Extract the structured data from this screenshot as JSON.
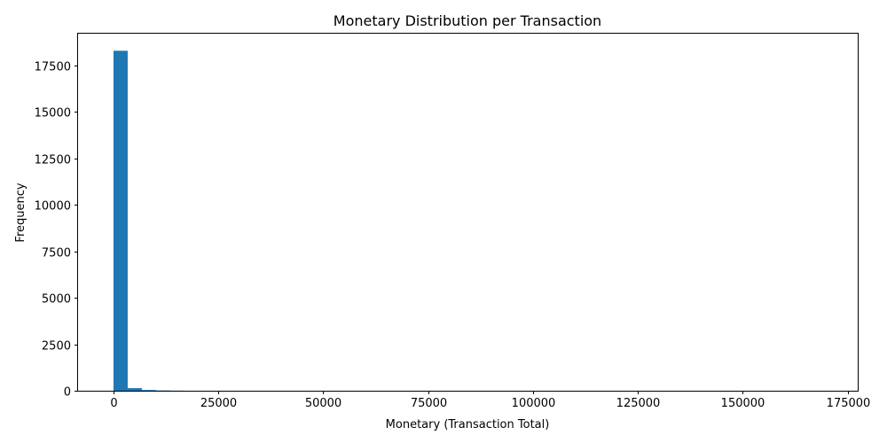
{
  "chart_data": {
    "type": "bar",
    "title": "Monetary Distribution per Transaction",
    "xlabel": "Monetary (Transaction Total)",
    "ylabel": "Frequency",
    "xlim": [
      -8449,
      177401
    ],
    "ylim": [
      0,
      19220
    ],
    "bin_width": 3379,
    "bins": [
      {
        "x0": 0,
        "count": 18300
      },
      {
        "x0": 3379,
        "count": 140
      },
      {
        "x0": 6758,
        "count": 40
      },
      {
        "x0": 10137,
        "count": 15
      },
      {
        "x0": 13516,
        "count": 5
      }
    ],
    "x_ticks": [
      0,
      25000,
      50000,
      75000,
      100000,
      125000,
      150000,
      175000
    ],
    "x_tick_labels": [
      "0",
      "25000",
      "50000",
      "75000",
      "100000",
      "125000",
      "150000",
      "175000"
    ],
    "y_ticks": [
      0,
      2500,
      5000,
      7500,
      10000,
      12500,
      15000,
      17500
    ],
    "y_tick_labels": [
      "0",
      "2500",
      "5000",
      "7500",
      "10000",
      "12500",
      "15000",
      "17500"
    ],
    "grid": false,
    "bar_color": "#1f77b4"
  }
}
